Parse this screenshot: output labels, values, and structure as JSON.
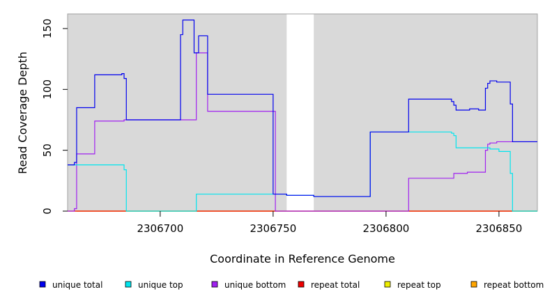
{
  "chart_data": {
    "type": "line",
    "title": "",
    "xlabel": "Coordinate in Reference Genome",
    "ylabel": "Read Coverage Depth",
    "xlim": [
      2306659,
      2306867
    ],
    "ylim": [
      0,
      162
    ],
    "x_ticks": [
      2306700,
      2306750,
      2306800,
      2306850
    ],
    "y_ticks": [
      0,
      50,
      100,
      150
    ],
    "gap": [
      2306756,
      2306768
    ],
    "background": "#d9d9d9",
    "grid": false,
    "legend_position": "bottom",
    "series": [
      {
        "name": "unique total",
        "color": "#0000ee",
        "x": [
          2306659,
          2306662,
          2306663,
          2306671,
          2306683,
          2306684,
          2306685,
          2306709,
          2306710,
          2306711,
          2306715,
          2306717,
          2306721,
          2306750,
          2306756,
          2306768,
          2306793,
          2306810,
          2306829,
          2306830,
          2306831,
          2306837,
          2306841,
          2306844,
          2306845,
          2306846,
          2306849,
          2306855,
          2306856,
          2306867
        ],
        "y": [
          38,
          40,
          85,
          112,
          113,
          109,
          75,
          145,
          157,
          157,
          130,
          144,
          96,
          14,
          13,
          12,
          65,
          92,
          90,
          87,
          83,
          84,
          83,
          101,
          105,
          107,
          106,
          88,
          57,
          57
        ]
      },
      {
        "name": "unique top",
        "color": "#00e5ee",
        "x": [
          2306659,
          2306684,
          2306685,
          2306716,
          2306750,
          2306756,
          2306768,
          2306793,
          2306829,
          2306830,
          2306831,
          2306846,
          2306850,
          2306855,
          2306856,
          2306867
        ],
        "y": [
          38,
          34,
          0,
          14,
          14,
          13,
          12,
          65,
          64,
          62,
          52,
          51,
          49,
          31,
          0,
          0
        ]
      },
      {
        "name": "unique bottom",
        "color": "#a020f0",
        "x": [
          2306659,
          2306662,
          2306663,
          2306671,
          2306684,
          2306685,
          2306716,
          2306721,
          2306750,
          2306751,
          2306810,
          2306830,
          2306836,
          2306844,
          2306845,
          2306846,
          2306849,
          2306867
        ],
        "y": [
          0,
          2,
          47,
          74,
          75,
          75,
          130,
          82,
          82,
          0,
          27,
          31,
          32,
          50,
          55,
          56,
          57,
          57
        ]
      },
      {
        "name": "repeat total",
        "color": "#ee0000",
        "x": [
          2306659,
          2306867
        ],
        "y": [
          0,
          0
        ]
      },
      {
        "name": "repeat top",
        "color": "#eeee00",
        "x": [
          2306659,
          2306867
        ],
        "y": [
          0,
          0
        ]
      },
      {
        "name": "repeat bottom",
        "color": "#ffa500",
        "x": [
          2306663,
          2306867
        ],
        "y": [
          0,
          0
        ]
      }
    ]
  }
}
